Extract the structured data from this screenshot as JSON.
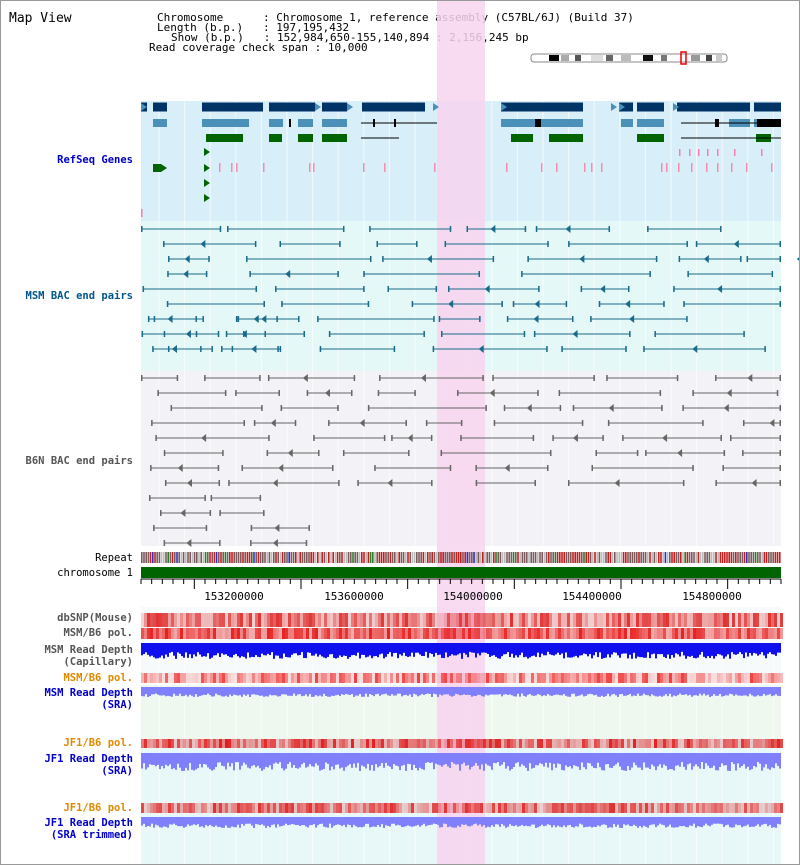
{
  "title": "Map View",
  "info": {
    "chromosome_key": "Chromosome",
    "chromosome_val": "Chromosome 1, reference assembly (C57BL/6J) (Build 37)",
    "length_key": "Length (b.p.)",
    "length_val": "197,195,432",
    "show_key": "Show (b.p.)",
    "show_val": "152,984,650-155,140,894 : 2,156,245 bp",
    "span_key": "Read coverage check span",
    "span_val": "10,000"
  },
  "tracks": {
    "refseq": "RefSeq Genes",
    "msm_bac": "MSM BAC end pairs",
    "b6n_bac": "B6N BAC end pairs",
    "repeat": "Repeat",
    "chromosome": "chromosome 1",
    "dbsnp": "dbSNP(Mouse)",
    "msm_b6_pol": "MSM/B6 pol.",
    "msm_depth_cap_1": "MSM Read Depth",
    "msm_depth_cap_2": "(Capillary)",
    "msm_b6_pol_sra": "MSM/B6 pol.",
    "msm_depth_sra_1": "MSM Read Depth",
    "msm_depth_sra_2": "(SRA)",
    "jf1_b6_pol": "JF1/B6 pol.",
    "jf1_depth_1": "JF1 Read Depth",
    "jf1_depth_2": "(SRA)",
    "jf1_b6_pol_trim": "JF1/B6 pol.",
    "jf1_trim_1": "JF1 Read Depth",
    "jf1_trim_2": "(SRA trimmed)"
  },
  "axis": {
    "ticks": [
      "153200000",
      "153600000",
      "154000000",
      "154400000",
      "154800000"
    ]
  },
  "colors": {
    "refseq_bg": "#d8eef9",
    "msm_bg": "#e4f8f8",
    "b6n_bg": "#f3f3f7",
    "highlight": "#f7d4ef",
    "gene_navy": "#003366",
    "gene_teal": "#4a90b8",
    "gene_green": "#006400",
    "chrom_green": "#006400",
    "depth_blue": "#1010ee",
    "depth_light": "#8080ff"
  },
  "icons": {
    "scroll": "chromosome-ideogram-icon"
  }
}
